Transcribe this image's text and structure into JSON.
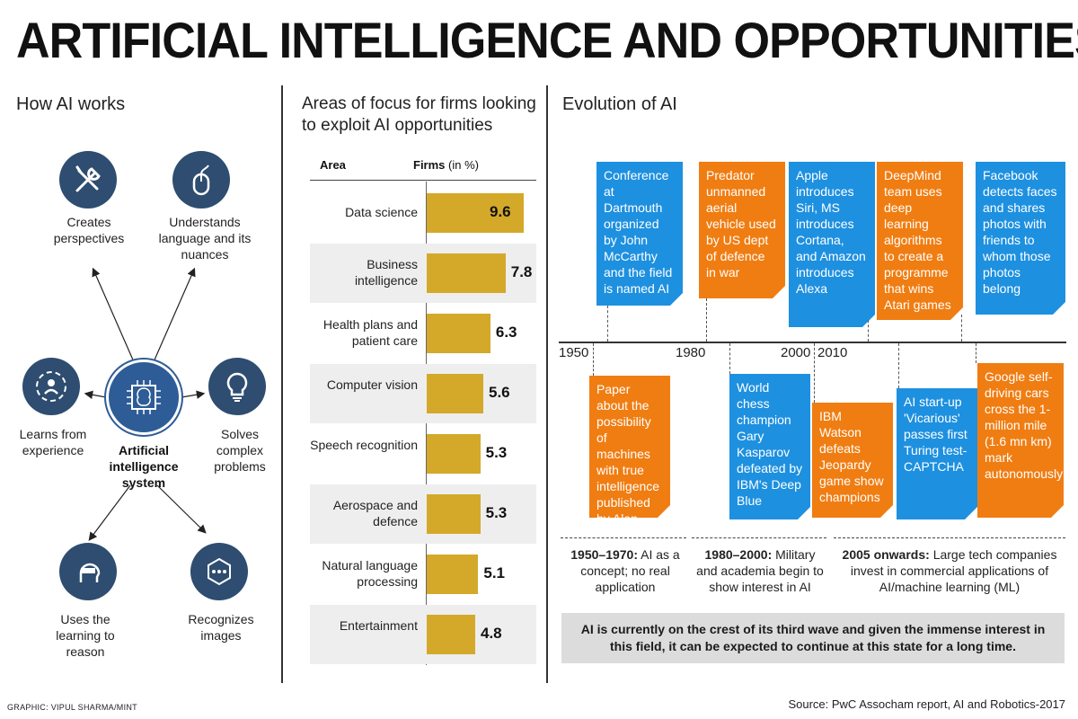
{
  "title": "ARTIFICIAL INTELLIGENCE AND OPPORTUNITIES",
  "how_ai_works": {
    "title": "How AI works",
    "center": "Artificial intelligence system",
    "items": [
      {
        "label": "Creates perspectives",
        "icon": "tools-icon"
      },
      {
        "label": "Understands language and its nuances",
        "icon": "mouse-icon"
      },
      {
        "label": "Learns from experience",
        "icon": "network-person-icon"
      },
      {
        "label": "Solves complex problems",
        "icon": "lightbulb-icon"
      },
      {
        "label": "Uses the learning to reason",
        "icon": "vr-head-icon"
      },
      {
        "label": "Recognizes images",
        "icon": "image-recognition-icon"
      }
    ]
  },
  "chart_data": {
    "type": "bar",
    "orientation": "horizontal",
    "title": "Areas of focus for firms looking to exploit AI opportunities",
    "category_header": "Area",
    "value_header": "Firms",
    "value_unit": "(in %)",
    "categories": [
      "Data science",
      "Business intelligence",
      "Health plans and patient care",
      "Computer vision",
      "Speech recognition",
      "Aerospace and defence",
      "Natural language processing",
      "Entertainment"
    ],
    "values": [
      9.6,
      7.8,
      6.3,
      5.6,
      5.3,
      5.3,
      5.1,
      4.8
    ],
    "value_labels": [
      "9.6",
      "7.8",
      "6.3",
      "5.6",
      "5.3",
      "5.3",
      "5.1",
      "4.8"
    ],
    "xlim": [
      0,
      10
    ]
  },
  "evolution": {
    "title": "Evolution of AI",
    "years": [
      "1950",
      "1980",
      "2000",
      "2010"
    ],
    "events_above": [
      {
        "text": "Conference at Dartmouth organized by John McCarthy and the field is named AI",
        "color": "#1e90e0"
      },
      {
        "text": "Predator unmanned aerial vehicle used by US dept of defence in war",
        "color": "#f07d12"
      },
      {
        "text": "Apple introduces Siri, MS introduces Cortana, and Amazon introduces Alexa",
        "color": "#1e90e0"
      },
      {
        "text": "DeepMind team uses deep learning algorithms to create a programme that wins Atari games",
        "color": "#f07d12"
      },
      {
        "text": "Facebook detects faces and shares photos with friends to whom those photos belong",
        "color": "#1e90e0"
      }
    ],
    "events_below": [
      {
        "text": "Paper about the possibility of machines with true intelligence published by Alan Turing",
        "color": "#f07d12"
      },
      {
        "text": "World chess champion Gary Kasparov defeated by IBM's Deep Blue",
        "color": "#1e90e0"
      },
      {
        "text": "IBM Watson defeats Jeopardy game show champions",
        "color": "#f07d12"
      },
      {
        "text": "AI start-up 'Vicarious' passes first Turing test-CAPTCHA",
        "color": "#1e90e0"
      },
      {
        "text": "Google self-driving cars cross the 1-million mile (1.6 mn km) mark autonomously",
        "color": "#f07d12"
      }
    ],
    "eras": [
      {
        "period": "1950–1970:",
        "desc": "AI as a concept; no real application"
      },
      {
        "period": "1980–2000:",
        "desc": "Military and academia begin to show interest in AI"
      },
      {
        "period": "2005 onwards:",
        "desc": "Large tech companies invest in commercial applications of AI/machine learning (ML)"
      }
    ],
    "summary": "AI is currently on the crest of its third wave and given the immense interest in this field, it can be expected to continue at this state for a long time."
  },
  "footer": {
    "credit": "GRAPHIC: VIPUL SHARMA/MINT",
    "source": "Source: PwC Assocham report, AI and Robotics-2017"
  },
  "colors": {
    "bar": "#d4a92a",
    "blue_box": "#1e90e0",
    "orange_box": "#f07d12",
    "icon_circle": "#2e4d70",
    "center_circle": "#2e5c97"
  }
}
